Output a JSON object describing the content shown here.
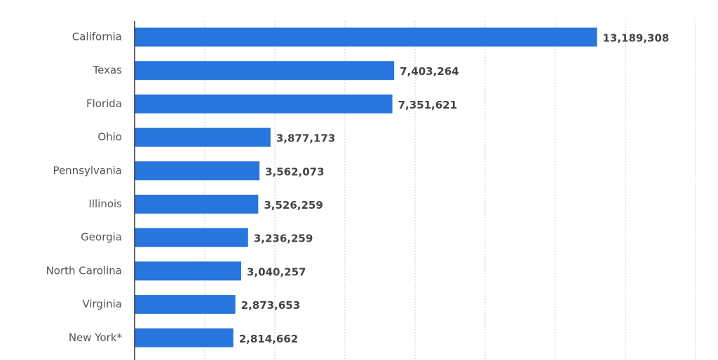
{
  "chart_data": {
    "type": "bar",
    "orientation": "horizontal",
    "categories": [
      "California",
      "Texas",
      "Florida",
      "Ohio",
      "Pennsylvania",
      "Illinois",
      "Georgia",
      "North Carolina",
      "Virginia",
      "New York*"
    ],
    "values": [
      13189308,
      7403264,
      7351621,
      3877173,
      3562073,
      3526259,
      3236259,
      3040257,
      2873653,
      2814662
    ],
    "value_labels": [
      "13,189,308",
      "7,403,264",
      "7,351,621",
      "3,877,173",
      "3,562,073",
      "3,526,259",
      "3,236,259",
      "3,040,257",
      "2,873,653",
      "2,814,662"
    ],
    "color": "#2876dd",
    "xlim": [
      0,
      16000000
    ],
    "xticks": [
      0,
      2000000,
      4000000,
      6000000,
      8000000,
      10000000,
      12000000,
      14000000,
      16000000
    ],
    "grid": true
  }
}
